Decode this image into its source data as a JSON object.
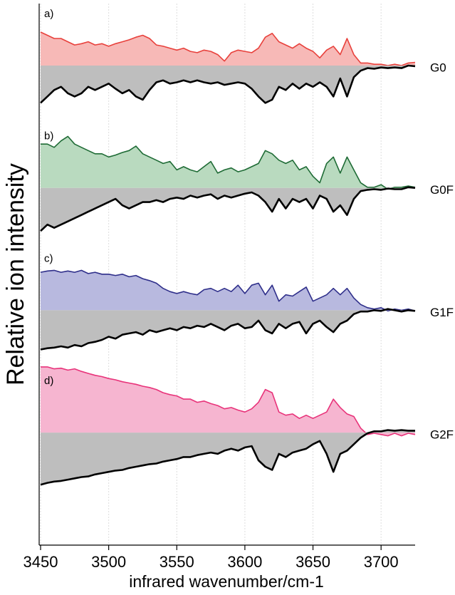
{
  "chart_data": {
    "type": "area",
    "xlabel": "infrared wavenumber/cm-1",
    "ylabel": "Relative ion intensity",
    "xlim": [
      3450,
      3725
    ],
    "xticks": [
      3450,
      3500,
      3550,
      3600,
      3650,
      3700
    ],
    "ylim": [
      -1.7,
      2.1
    ],
    "grid": true,
    "x": [
      3450,
      3455,
      3460,
      3465,
      3470,
      3475,
      3480,
      3485,
      3490,
      3495,
      3500,
      3505,
      3510,
      3515,
      3520,
      3525,
      3530,
      3535,
      3540,
      3545,
      3550,
      3555,
      3560,
      3565,
      3570,
      3575,
      3580,
      3585,
      3590,
      3595,
      3600,
      3605,
      3610,
      3615,
      3620,
      3625,
      3630,
      3635,
      3640,
      3645,
      3650,
      3655,
      3660,
      3665,
      3670,
      3675,
      3680,
      3685,
      3690,
      3695,
      3700,
      3705,
      3710,
      3715,
      3720,
      3725
    ],
    "panels": [
      {
        "label": "a)",
        "name": "G0",
        "series": [
          {
            "color": "#e8413c",
            "fill": "#f7b9b7",
            "values": [
              1.04,
              0.94,
              0.84,
              0.84,
              0.74,
              0.64,
              0.68,
              0.74,
              0.64,
              0.68,
              0.6,
              0.68,
              0.74,
              0.8,
              0.88,
              0.94,
              0.84,
              0.64,
              0.6,
              0.54,
              0.48,
              0.54,
              0.44,
              0.4,
              0.48,
              0.44,
              0.34,
              0.14,
              0.4,
              0.48,
              0.44,
              0.4,
              0.54,
              0.88,
              1.0,
              0.74,
              0.64,
              0.54,
              0.68,
              0.54,
              0.44,
              0.24,
              0.48,
              0.6,
              0.34,
              0.84,
              0.34,
              0.08,
              0.08,
              0.04,
              0.04,
              0,
              0.04,
              0,
              0.08,
              0.1
            ]
          },
          {
            "color": "#000000",
            "fill": "#bebebe",
            "values": [
              -1.16,
              -0.96,
              -0.76,
              -0.66,
              -0.86,
              -0.96,
              -0.86,
              -0.66,
              -0.76,
              -0.66,
              -0.56,
              -0.72,
              -0.86,
              -0.76,
              -0.96,
              -1.06,
              -0.76,
              -0.52,
              -0.46,
              -0.56,
              -0.52,
              -0.46,
              -0.52,
              -0.46,
              -0.52,
              -0.56,
              -0.52,
              -0.6,
              -0.56,
              -0.52,
              -0.56,
              -0.72,
              -0.96,
              -1.16,
              -1.06,
              -0.66,
              -0.76,
              -0.56,
              -0.72,
              -0.56,
              -0.66,
              -0.52,
              -0.66,
              -0.96,
              -0.4,
              -0.96,
              -0.36,
              -0.16,
              -0.08,
              -0.1,
              -0.06,
              -0.08,
              -0.06,
              -0.08,
              0,
              -0.02
            ]
          }
        ]
      },
      {
        "label": "b)",
        "name": "G0F",
        "series": [
          {
            "color": "#1e6b35",
            "fill": "#b9dabf",
            "values": [
              1.36,
              1.36,
              1.26,
              1.46,
              1.6,
              1.36,
              1.26,
              1.16,
              1.06,
              1.06,
              0.96,
              1.02,
              1.1,
              1.16,
              1.3,
              1.06,
              0.96,
              0.86,
              0.76,
              0.82,
              0.56,
              0.66,
              0.56,
              0.5,
              0.66,
              0.82,
              0.46,
              0.56,
              0.62,
              0.5,
              0.56,
              0.66,
              0.76,
              1.16,
              1.06,
              0.86,
              0.76,
              0.86,
              0.56,
              0.66,
              0.36,
              0.16,
              0.76,
              0.96,
              0.46,
              0.96,
              0.56,
              0.16,
              0.02,
              0.02,
              0.1,
              -0.04,
              0.02,
              0.02,
              0.06,
              0.02
            ]
          },
          {
            "color": "#000000",
            "fill": "#bebebe",
            "values": [
              -1.34,
              -1.14,
              -1.24,
              -1.14,
              -1.04,
              -0.94,
              -0.84,
              -0.74,
              -0.64,
              -0.54,
              -0.44,
              -0.34,
              -0.54,
              -0.64,
              -0.54,
              -0.44,
              -0.44,
              -0.38,
              -0.44,
              -0.34,
              -0.3,
              -0.34,
              -0.24,
              -0.3,
              -0.24,
              -0.2,
              -0.34,
              -0.24,
              -0.3,
              -0.24,
              -0.18,
              -0.14,
              -0.24,
              -0.44,
              -0.74,
              -0.34,
              -0.64,
              -0.34,
              -0.44,
              -0.34,
              -0.64,
              -0.24,
              -0.34,
              -0.74,
              -0.54,
              -0.84,
              -0.34,
              -0.1,
              -0.06,
              -0.04,
              -0.06,
              -0.02,
              -0.04,
              -0.04,
              0.02,
              0
            ]
          }
        ]
      },
      {
        "label": "c)",
        "name": "G1F",
        "series": [
          {
            "color": "#2e2e8a",
            "fill": "#b8b9df",
            "values": [
              1.18,
              1.22,
              1.24,
              1.18,
              1.22,
              1.18,
              1.24,
              1.14,
              1.18,
              1.12,
              1.12,
              1.08,
              1.12,
              1.04,
              1.08,
              0.98,
              0.92,
              0.84,
              0.68,
              0.58,
              0.52,
              0.58,
              0.52,
              0.48,
              0.64,
              0.68,
              0.58,
              0.68,
              0.58,
              0.78,
              0.52,
              0.78,
              0.84,
              0.48,
              0.78,
              0.28,
              0.48,
              0.44,
              0.58,
              0.72,
              0.28,
              0.38,
              0.48,
              0.68,
              0.48,
              0.68,
              0.38,
              0.18,
              0.08,
              0.04,
              0.08,
              -0.02,
              0.04,
              0,
              0.04,
              -0.02
            ]
          },
          {
            "color": "#000000",
            "fill": "#bebebe",
            "values": [
              -1.22,
              -1.18,
              -1.16,
              -1.12,
              -1.16,
              -1.08,
              -1.12,
              -1.02,
              -0.98,
              -0.92,
              -0.82,
              -0.88,
              -0.76,
              -0.72,
              -0.68,
              -0.76,
              -0.62,
              -0.68,
              -0.62,
              -0.56,
              -0.62,
              -0.52,
              -0.56,
              -0.48,
              -0.52,
              -0.42,
              -0.52,
              -0.62,
              -0.48,
              -0.42,
              -0.56,
              -0.52,
              -0.32,
              -0.62,
              -0.72,
              -0.42,
              -0.56,
              -0.42,
              -0.36,
              -0.72,
              -0.42,
              -0.32,
              -0.52,
              -0.68,
              -0.42,
              -0.32,
              -0.12,
              -0.04,
              -0.04,
              0,
              -0.02,
              0.04,
              0,
              -0.04,
              0,
              -0.02
            ]
          }
        ]
      },
      {
        "label": "d)",
        "name": "G2F",
        "series": [
          {
            "color": "#e8337a",
            "fill": "#f6b5d0",
            "values": [
              2.04,
              2.04,
              1.98,
              2.0,
              1.94,
              1.98,
              1.9,
              1.84,
              1.78,
              1.74,
              1.68,
              1.64,
              1.58,
              1.54,
              1.5,
              1.44,
              1.4,
              1.34,
              1.24,
              1.18,
              1.14,
              1.04,
              1.04,
              0.94,
              0.98,
              0.9,
              0.84,
              0.74,
              0.78,
              0.7,
              0.64,
              0.74,
              0.94,
              1.34,
              1.24,
              0.64,
              0.54,
              0.58,
              0.44,
              0.54,
              0.44,
              0.54,
              0.64,
              1.04,
              0.78,
              0.58,
              0.5,
              0.14,
              -0.06,
              -0.02,
              -0.06,
              -0.1,
              -0.02,
              -0.1,
              -0.02,
              -0.06
            ]
          },
          {
            "color": "#000000",
            "fill": "#bebebe",
            "values": [
              -1.62,
              -1.56,
              -1.52,
              -1.5,
              -1.46,
              -1.42,
              -1.38,
              -1.36,
              -1.3,
              -1.26,
              -1.22,
              -1.18,
              -1.16,
              -1.1,
              -1.06,
              -1.02,
              -0.98,
              -0.96,
              -0.9,
              -0.86,
              -0.82,
              -0.76,
              -0.76,
              -0.7,
              -0.66,
              -0.62,
              -0.66,
              -0.56,
              -0.5,
              -0.56,
              -0.46,
              -0.42,
              -0.86,
              -1.06,
              -1.16,
              -0.66,
              -0.76,
              -0.62,
              -0.56,
              -0.5,
              -0.36,
              -0.26,
              -0.66,
              -1.22,
              -0.66,
              -0.56,
              -0.36,
              -0.16,
              -0.02,
              0.04,
              0.04,
              0.08,
              0.06,
              0.08,
              0.06,
              0.06
            ]
          }
        ]
      }
    ]
  }
}
